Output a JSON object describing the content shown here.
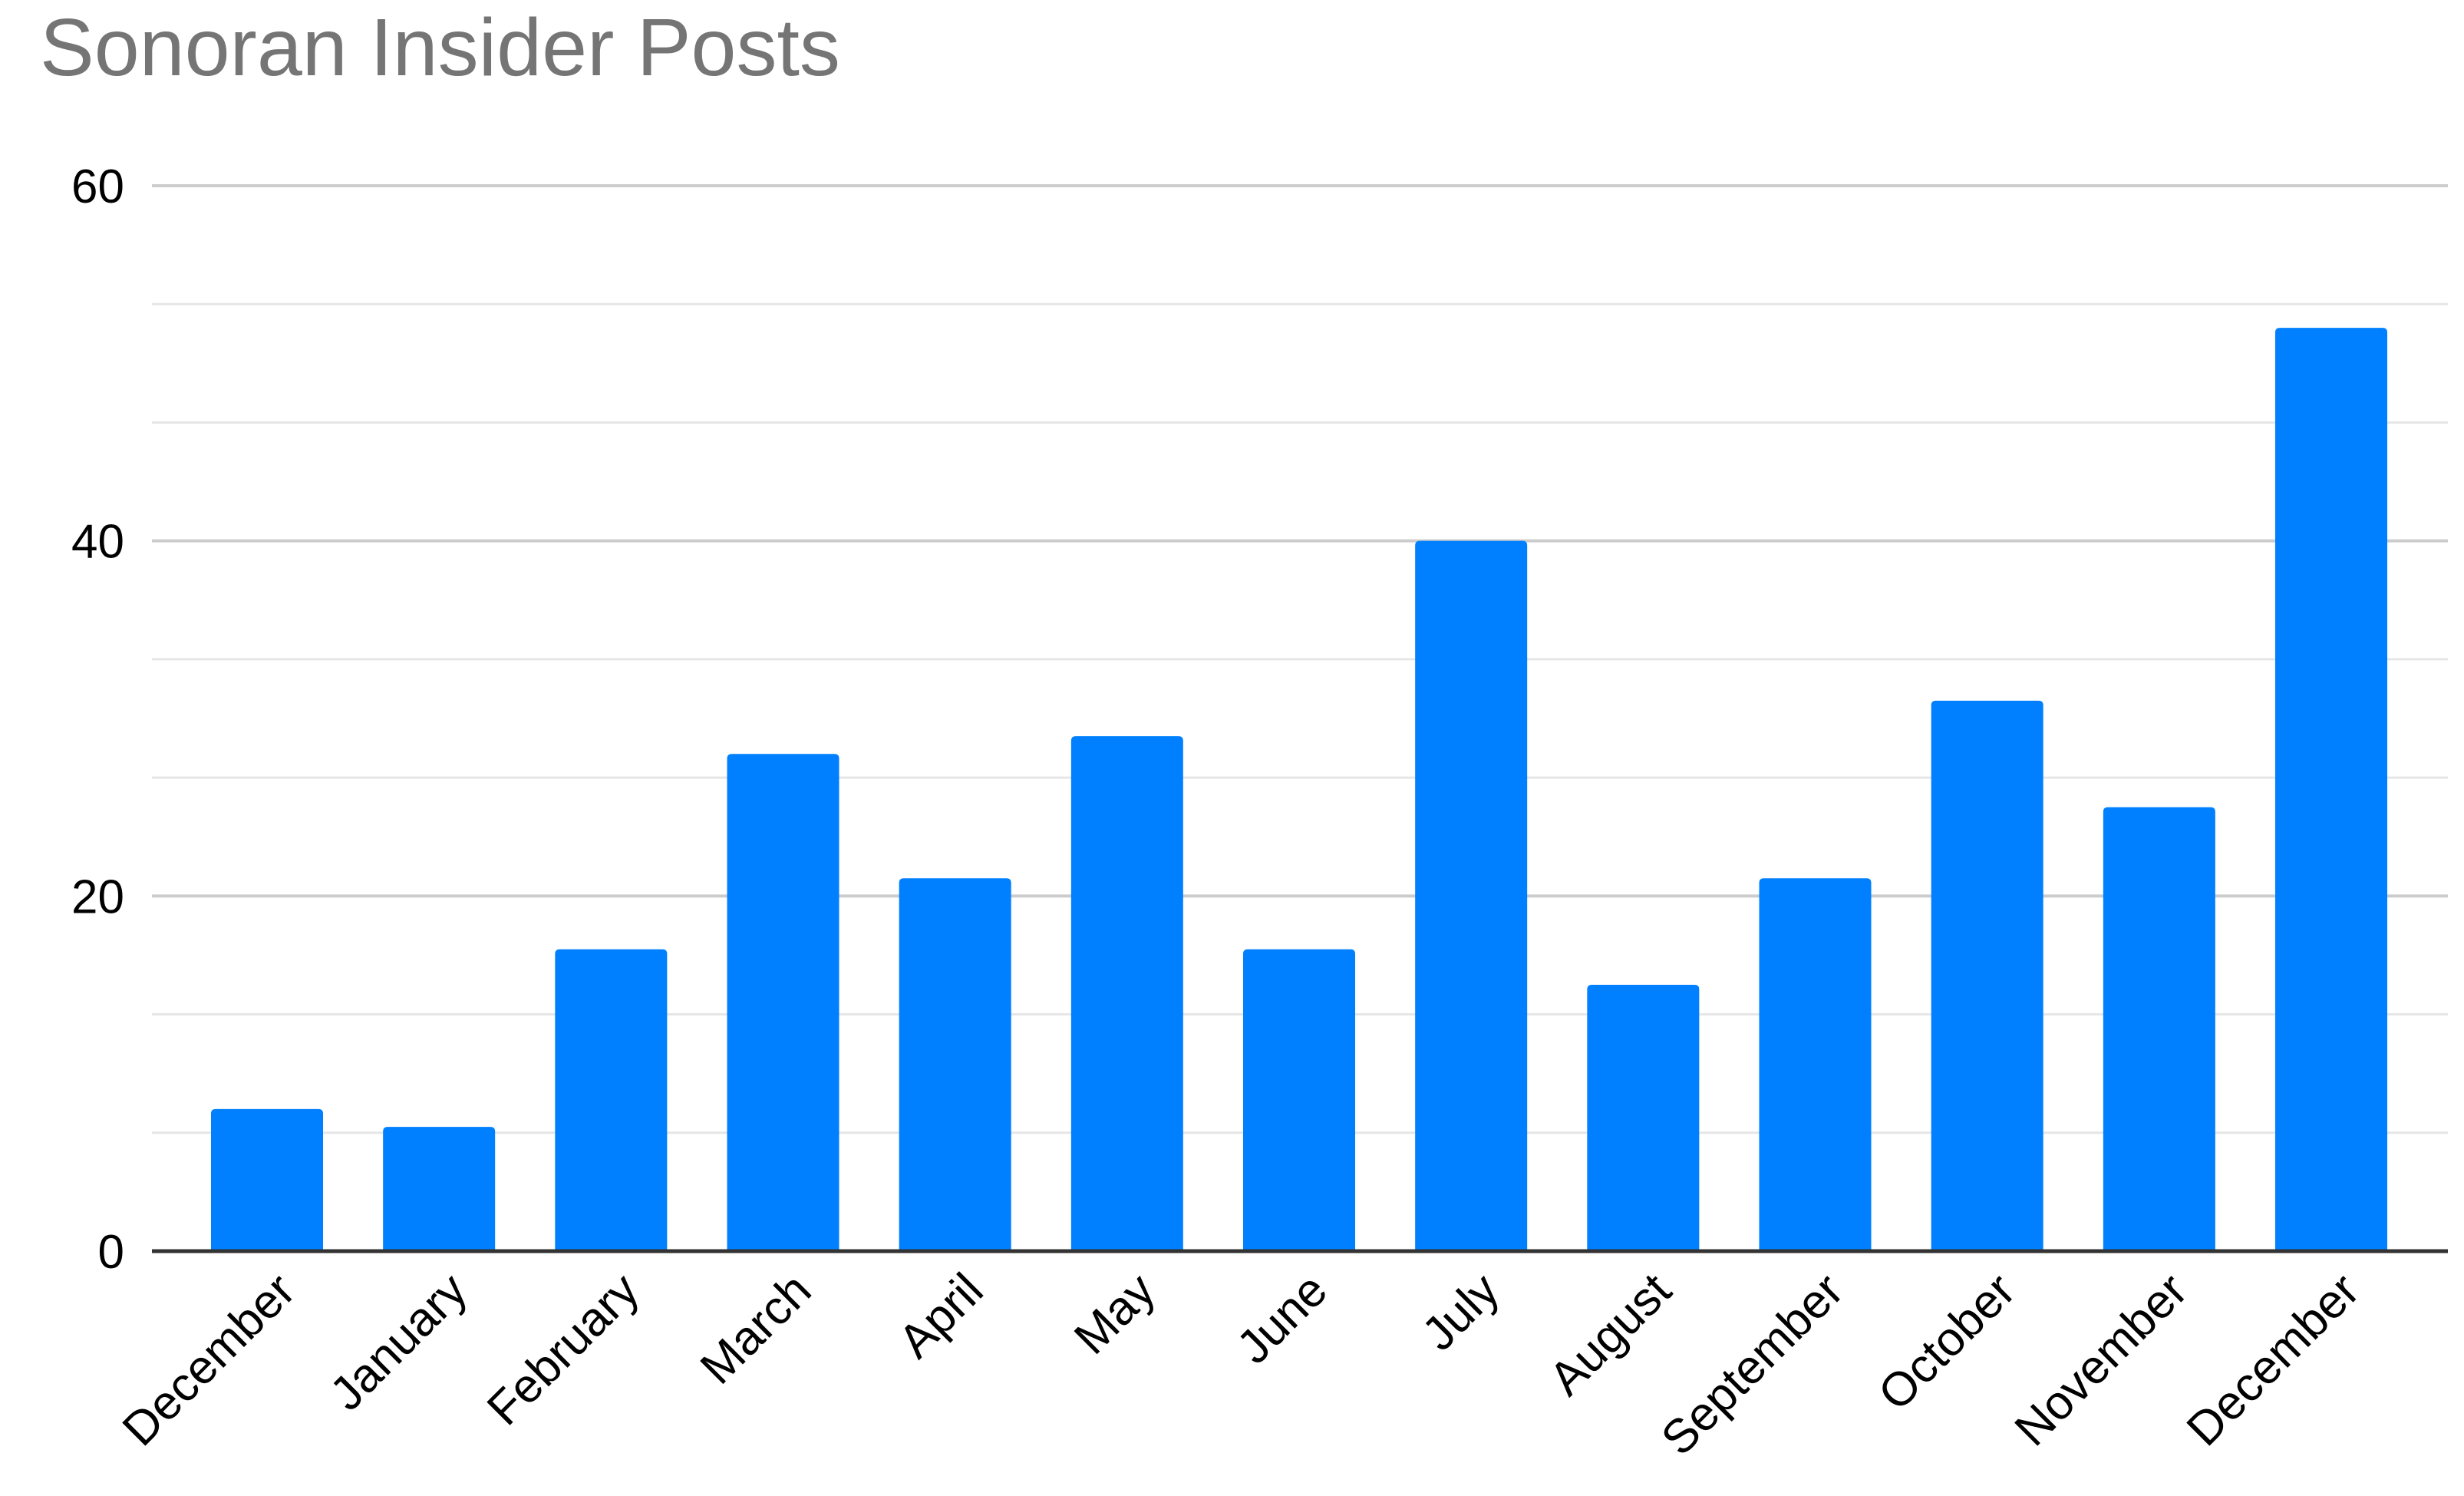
{
  "chart_data": {
    "type": "bar",
    "title": "Sonoran Insider Posts",
    "xlabel": "",
    "ylabel": "",
    "categories": [
      "December",
      "January",
      "February",
      "March",
      "April",
      "May",
      "June",
      "July",
      "August",
      "September",
      "October",
      "November",
      "December"
    ],
    "values": [
      8,
      7,
      17,
      28,
      21,
      29,
      17,
      40,
      15,
      21,
      31,
      25,
      52
    ],
    "ylim": [
      0,
      60
    ],
    "yticks": [
      "0",
      "20",
      "40",
      "60"
    ],
    "minor_grid_step": 6.6667,
    "grid": true,
    "legend": "none",
    "colors": {
      "bar": "#0080FF",
      "major_grid": "#CCCCCC",
      "minor_grid": "#E6E6E6",
      "baseline": "#333333",
      "title": "#757575"
    }
  }
}
